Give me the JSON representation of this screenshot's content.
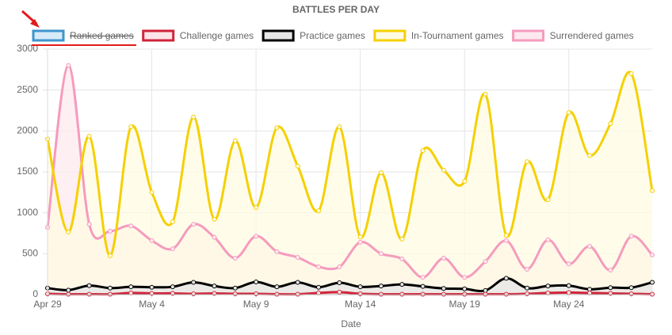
{
  "chart_data": {
    "type": "line",
    "title": "BATTLES PER DAY",
    "x_label": "Date",
    "categories": [
      "Apr 29",
      null,
      null,
      null,
      null,
      "May 4",
      null,
      null,
      null,
      null,
      "May 9",
      null,
      null,
      null,
      null,
      "May 14",
      null,
      null,
      null,
      null,
      "May 19",
      null,
      null,
      null,
      null,
      "May 24",
      null,
      null,
      null,
      null
    ],
    "ylim": [
      0,
      3000
    ],
    "yticks": [
      0,
      500,
      1000,
      1500,
      2000,
      2500,
      3000
    ],
    "grid": true,
    "legend": "top",
    "series": [
      {
        "name": "Ranked games",
        "color": "#3e95cd",
        "fill": "#d6eaf8",
        "hidden": true,
        "values": [
          null,
          null,
          null,
          null,
          null,
          null,
          null,
          null,
          null,
          null,
          null,
          null,
          null,
          null,
          null,
          null,
          null,
          null,
          null,
          null,
          null,
          null,
          null,
          null,
          null,
          null,
          null,
          null,
          null,
          null
        ]
      },
      {
        "name": "Challenge games",
        "color": "#d0243a",
        "fill": "#fde4e8",
        "values": [
          10,
          5,
          5,
          5,
          20,
          15,
          15,
          10,
          15,
          10,
          10,
          5,
          5,
          20,
          30,
          10,
          5,
          5,
          5,
          5,
          5,
          5,
          5,
          10,
          20,
          25,
          20,
          15,
          10,
          5
        ]
      },
      {
        "name": "Practice games",
        "color": "#000000",
        "fill": "#e6e6e6",
        "values": [
          80,
          55,
          110,
          80,
          95,
          90,
          95,
          150,
          105,
          80,
          155,
          95,
          150,
          90,
          145,
          95,
          105,
          125,
          100,
          75,
          70,
          50,
          200,
          80,
          105,
          110,
          65,
          85,
          85,
          150
        ]
      },
      {
        "name": "In-Tournament games",
        "color": "#f5d000",
        "fill": "#fffbe3",
        "values": [
          1900,
          765,
          1935,
          475,
          2050,
          1250,
          890,
          2170,
          920,
          1880,
          1065,
          2040,
          1570,
          1025,
          2050,
          705,
          1490,
          680,
          1760,
          1520,
          1385,
          2450,
          725,
          1625,
          1160,
          2225,
          1700,
          2090,
          2700,
          1270
        ]
      },
      {
        "name": "Surrendered games",
        "color": "#f59bbd",
        "fill": "#fde9ef",
        "values": [
          820,
          2800,
          860,
          775,
          840,
          660,
          560,
          860,
          700,
          445,
          715,
          525,
          455,
          340,
          340,
          640,
          500,
          435,
          210,
          445,
          210,
          405,
          660,
          310,
          670,
          375,
          590,
          300,
          715,
          485
        ]
      }
    ]
  }
}
